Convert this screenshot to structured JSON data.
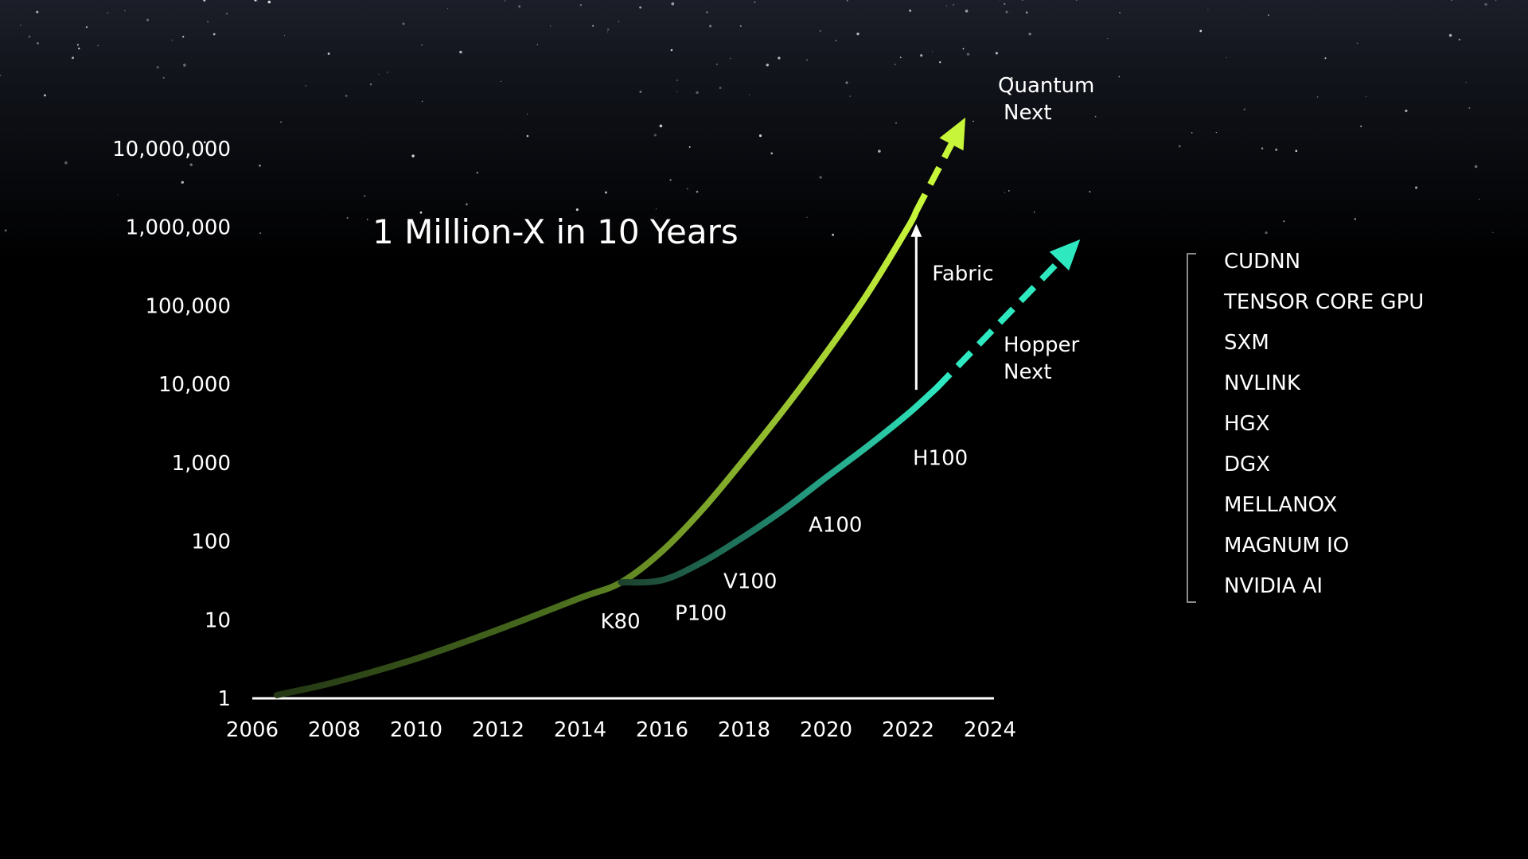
{
  "chart_data": {
    "type": "line",
    "title": "1 Million-X in 10 Years",
    "xlabel": "",
    "ylabel": "",
    "x_ticks": [
      "2006",
      "2008",
      "2010",
      "2012",
      "2014",
      "2016",
      "2018",
      "2020",
      "2022",
      "2024"
    ],
    "y_ticks": [
      "1",
      "10",
      "100",
      "1,000",
      "10,000",
      "100,000",
      "1,000,000",
      "10,000,000"
    ],
    "xlim": [
      2006,
      2024
    ],
    "ylim": [
      1,
      10000000
    ],
    "y_scale": "log",
    "grid": false,
    "series": [
      {
        "color": "#c7f53a",
        "values": [
          [
            2006.6,
            1.1
          ],
          [
            2008,
            1.6
          ],
          [
            2010,
            3.2
          ],
          [
            2012,
            7.5
          ],
          [
            2014,
            19
          ],
          [
            2015,
            30
          ],
          [
            2016,
            75
          ],
          [
            2017,
            260
          ],
          [
            2018,
            1100
          ],
          [
            2019,
            5000
          ],
          [
            2020,
            25000
          ],
          [
            2021,
            140000
          ],
          [
            2022,
            1000000
          ],
          [
            2022.2,
            1600000
          ]
        ],
        "projection": [
          [
            2022.2,
            1600000
          ],
          [
            2023.4,
            25000000
          ]
        ],
        "projection_label": [
          "Quantum",
          "Next"
        ]
      },
      {
        "color": "#2ee8c0",
        "values": [
          [
            2015,
            30
          ],
          [
            2016,
            32
          ],
          [
            2017,
            55
          ],
          [
            2018,
            115
          ],
          [
            2019,
            260
          ],
          [
            2020,
            650
          ],
          [
            2021,
            1600
          ],
          [
            2022,
            4200
          ],
          [
            2022.7,
            9000
          ]
        ],
        "projection": [
          [
            2022.7,
            9000
          ],
          [
            2026.2,
            700000
          ]
        ],
        "projection_label": [
          "Hopper",
          "Next"
        ]
      }
    ],
    "points": [
      {
        "label": "K80",
        "x": 2015,
        "y": 30
      },
      {
        "label": "P100",
        "x": 2016,
        "y": 32
      },
      {
        "label": "V100",
        "x": 2018,
        "y": 115
      },
      {
        "label": "A100",
        "x": 2020,
        "y": 650
      },
      {
        "label": "H100",
        "x": 2022,
        "y": 4200
      }
    ],
    "annotations": [
      {
        "text": "Fabric",
        "from": [
          2022.2,
          8500
        ],
        "to": [
          2022.2,
          1000000
        ]
      }
    ],
    "tech_list": [
      "CUDNN",
      "TENSOR CORE GPU",
      "SXM",
      "NVLINK",
      "HGX",
      "DGX",
      "MELLANOX",
      "MAGNUM IO",
      "NVIDIA AI"
    ]
  }
}
